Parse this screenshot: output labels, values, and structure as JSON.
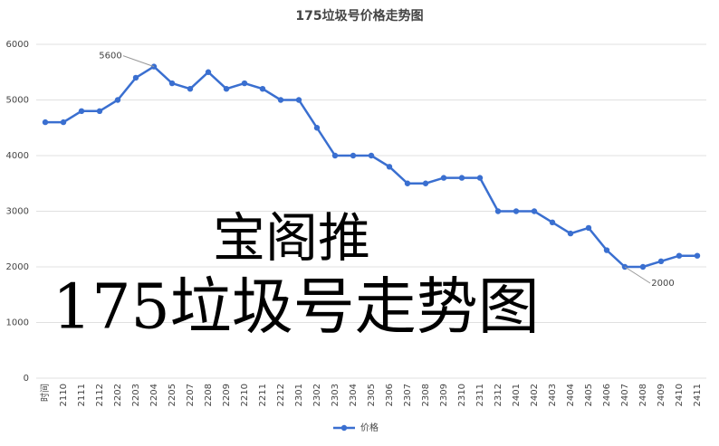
{
  "chart_data": {
    "type": "line",
    "title": "175垃圾号价格走势图",
    "categories": [
      "时间",
      "2110",
      "2111",
      "2112",
      "2202",
      "2203",
      "2204",
      "2205",
      "2207",
      "2208",
      "2209",
      "2210",
      "2211",
      "2212",
      "2301",
      "2302",
      "2303",
      "2304",
      "2305",
      "2306",
      "2307",
      "2308",
      "2309",
      "2310",
      "2311",
      "2312",
      "2401",
      "2402",
      "2403",
      "2404",
      "2405",
      "2406",
      "2407",
      "2408",
      "2409",
      "2410",
      "2411"
    ],
    "series": [
      {
        "name": "价格",
        "color": "#3a6fd0",
        "values": [
          4600,
          4600,
          4800,
          4800,
          5000,
          5400,
          5600,
          5300,
          5200,
          5500,
          5200,
          5300,
          5200,
          5000,
          5000,
          4500,
          4000,
          4000,
          4000,
          3800,
          3500,
          3500,
          3600,
          3600,
          3600,
          3000,
          3000,
          3000,
          2800,
          2600,
          2700,
          2300,
          2000,
          2000,
          2100,
          2200,
          2200
        ]
      }
    ],
    "ylim": [
      0,
      6000
    ],
    "yticks": [
      0,
      1000,
      2000,
      3000,
      4000,
      5000,
      6000
    ],
    "grid": true,
    "legend": "bottom",
    "annotations": [
      {
        "category": "2204",
        "value": 5600
      },
      {
        "category": "2407",
        "value": 2000
      }
    ],
    "watermark": [
      "宝阁推",
      "175垃圾号走势图"
    ]
  }
}
